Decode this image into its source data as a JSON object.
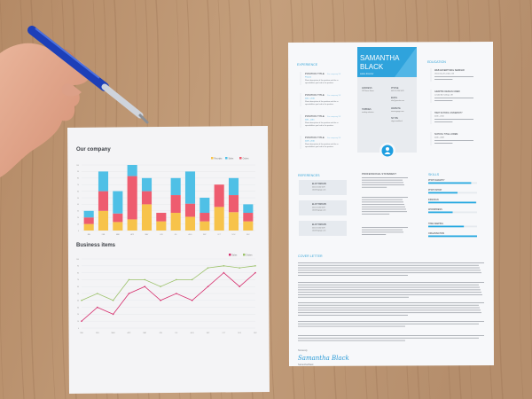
{
  "report": {
    "chart1_title": "Our company",
    "chart2_title": "Business items"
  },
  "chart_data": [
    {
      "type": "bar",
      "stacked": true,
      "title": "Our company",
      "categories": [
        "JAN",
        "FEB",
        "MAR",
        "APR",
        "MAY",
        "JUN",
        "JUL",
        "AUG",
        "SEP",
        "OCT",
        "NOV",
        "DEC"
      ],
      "ylim": [
        0,
        100
      ],
      "yticks": [
        0,
        10,
        20,
        30,
        40,
        50,
        60,
        70,
        80,
        90,
        100
      ],
      "grid": true,
      "legend": "top-right",
      "series": [
        {
          "name": "Receipts",
          "color": "#f7c34a",
          "values": [
            10,
            30,
            13,
            17,
            40,
            14,
            27,
            21,
            14,
            36,
            28,
            14
          ]
        },
        {
          "name": "Orders",
          "color": "#ee5c6f",
          "values": [
            10,
            30,
            13,
            66,
            20,
            13,
            27,
            20,
            13,
            34,
            26,
            13
          ]
        },
        {
          "name": "Sales",
          "color": "#4fc0e6",
          "values": [
            10,
            30,
            34,
            17,
            20,
            0,
            26,
            49,
            23,
            0,
            26,
            13
          ]
        }
      ]
    },
    {
      "type": "line",
      "title": "Business items",
      "categories": [
        "JAN",
        "FEB",
        "MAR",
        "APR",
        "MAY",
        "JUN",
        "JUL",
        "AUG",
        "SEP",
        "OCT",
        "NOV",
        "DEC"
      ],
      "ylim": [
        0,
        100
      ],
      "yticks": [
        0,
        10,
        20,
        30,
        40,
        50,
        60,
        70,
        80,
        90,
        100
      ],
      "grid": true,
      "legend": "top-right",
      "series": [
        {
          "name": "Sales",
          "color": "#d6306e",
          "values": [
            10,
            30,
            20,
            50,
            60,
            40,
            50,
            40,
            60,
            80,
            60,
            80
          ]
        },
        {
          "name": "Orders",
          "color": "#9cc26a",
          "values": [
            40,
            50,
            40,
            70,
            70,
            60,
            70,
            70,
            87,
            90,
            87,
            90
          ]
        }
      ]
    }
  ],
  "resume": {
    "name_line1": "SAMANTHA",
    "name_line2": "BLACK",
    "role": "sales director",
    "experience_heading": "EXPERIENCE",
    "positions": [
      {
        "title": "POSITION TITLE",
        "company": "Xxx company XX",
        "dates": "Present"
      },
      {
        "title": "POSITION TITLE",
        "company": "Xxx company XX",
        "dates": "2012 - 2016"
      },
      {
        "title": "POSITION TITLE",
        "company": "Xxx company XX",
        "dates": "2011 - 2015"
      },
      {
        "title": "POSITION TITLE",
        "company": "Xxx company XX",
        "dates": "2009 - 2010"
      }
    ],
    "position_desc": "Short description of the position and the responsibilities you had in the position.",
    "contact": {
      "address_label": "ADDRESS",
      "address": "123 Name Street",
      "phone_label": "PHONE",
      "phone": "0012 45 234 5678",
      "email_label": "EMAIL",
      "email": "info@yoursite.com",
      "hobbies_label": "HOBBIES",
      "hobbies": "reading websites",
      "website_label": "WEBSITE",
      "website": "www.mypage.com",
      "skype_label": "SKYPE",
      "skype": "skype.samblack"
    },
    "education_heading": "EDUCATION",
    "education": [
      {
        "title": "WEB ADVERTISING SEMINAR",
        "detail": "University of London, UK"
      },
      {
        "title": "GRAPHIC DESIGN CREW",
        "detail": "London Art College, UK"
      },
      {
        "title": "HIGH SCHOOL UNIVERSITY",
        "detail": "2006 - 2010"
      },
      {
        "title": "SCHOOL TITLE LOREM",
        "detail": "2006 - 2008"
      }
    ],
    "references_heading": "REFERENCES",
    "references": [
      {
        "name": "ELIOT BROWN",
        "phone": "0012 45 234 5678",
        "email": "eliot@mypage.com"
      },
      {
        "name": "ELIOT BROWN",
        "phone": "0012 45 234 5678",
        "email": "eliot@mypage.com"
      },
      {
        "name": "ELIOT BROWN",
        "phone": "0012 45 234 5678",
        "email": "eliot@mypage.com"
      }
    ],
    "statement_heading": "PROFESSIONAL STATEMENT",
    "skills_heading": "SKILLS",
    "skills": [
      {
        "name": "PHOTOGRAPHY",
        "level": 0.88
      },
      {
        "name": "PHOTOSHOP",
        "level": 0.6
      },
      {
        "name": "INDESIGN",
        "level": 0.98
      },
      {
        "name": "WORDPRESS",
        "level": 0.5
      },
      {
        "name": "TIME KEEPING",
        "level": 0.73
      },
      {
        "name": "ORGANISATION",
        "level": 1.0
      }
    ],
    "cover_heading": "COVER LETTER",
    "closing": "Sincerely",
    "signature": "Samantha Black",
    "signed_name": "Samantha Black"
  }
}
